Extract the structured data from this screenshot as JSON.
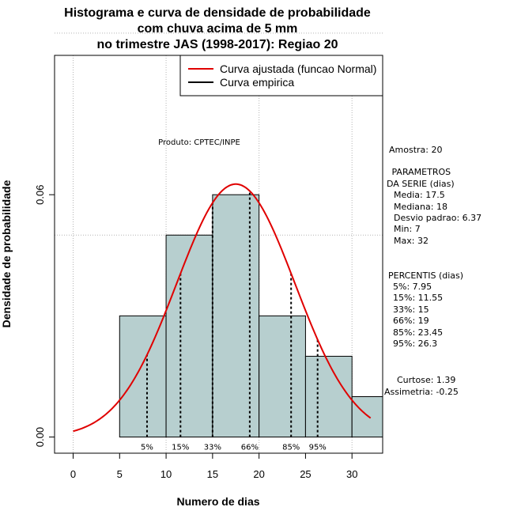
{
  "chart_data": {
    "type": "bar",
    "title": [
      "Histograma e curva de densidade de probabilidade",
      "com chuva acima de 5 mm",
      "no trimestre JAS (1998-2017): Regiao 20"
    ],
    "xlabel": "Numero de dias",
    "ylabel": "Densidade de probabilidade",
    "xlim": [
      -2,
      33.3
    ],
    "ylim": [
      -0.004,
      0.0945
    ],
    "x_ticks": [
      0,
      5,
      10,
      15,
      20,
      25,
      30
    ],
    "y_ticks": [
      0.0,
      0.06
    ],
    "y_tick_labels": [
      "0.00",
      "0.06"
    ],
    "x_grid": [
      0,
      10,
      20,
      30
    ],
    "y_grid": [
      0.05,
      0.1
    ],
    "bins": [
      {
        "from": 5,
        "to": 10,
        "density": 0.03
      },
      {
        "from": 10,
        "to": 15,
        "density": 0.05
      },
      {
        "from": 15,
        "to": 20,
        "density": 0.06
      },
      {
        "from": 20,
        "to": 25,
        "density": 0.03
      },
      {
        "from": 25,
        "to": 30,
        "density": 0.02
      },
      {
        "from": 30,
        "to": 35,
        "density": 0.01
      }
    ],
    "curve": {
      "name": "Curva ajustada (funcao Normal)",
      "mean": 17.5,
      "sd": 6.37,
      "from": 0,
      "to": 32
    },
    "percentiles": [
      {
        "label": "5%",
        "x": 7.95
      },
      {
        "label": "15%",
        "x": 11.55
      },
      {
        "label": "33%",
        "x": 15
      },
      {
        "label": "66%",
        "x": 19
      },
      {
        "label": "85%",
        "x": 23.45
      },
      {
        "label": "95%",
        "x": 26.3
      }
    ],
    "legend": [
      {
        "label": "Curva ajustada (funcao Normal)",
        "color": "#e00000"
      },
      {
        "label": "Curva empirica",
        "color": "#000000"
      }
    ],
    "legend_position": "top-right",
    "annotation": "Produto: CPTEC/INPE"
  },
  "side_panel": {
    "amostra": "Amostra: 20",
    "params_title": " PARAMETROS",
    "params_subtitle": "DA SERIE (dias)",
    "params": [
      "Media: 17.5",
      "Mediana: 18",
      "Desvio padrao: 6.37",
      "Min: 7",
      "Max: 32"
    ],
    "percentis_title": "PERCENTIS (dias)",
    "percentis": [
      "5%: 7.95",
      "15%: 11.55",
      "33%: 15",
      "66%: 19",
      "85%: 23.45",
      "95%: 26.3"
    ],
    "curtose": "Curtose: 1.39",
    "assimetria": "Assimetria: -0.25"
  },
  "colors": {
    "bar_fill": "#b7cfcf",
    "curve": "#e00000",
    "grid": "#b4b4b4"
  }
}
